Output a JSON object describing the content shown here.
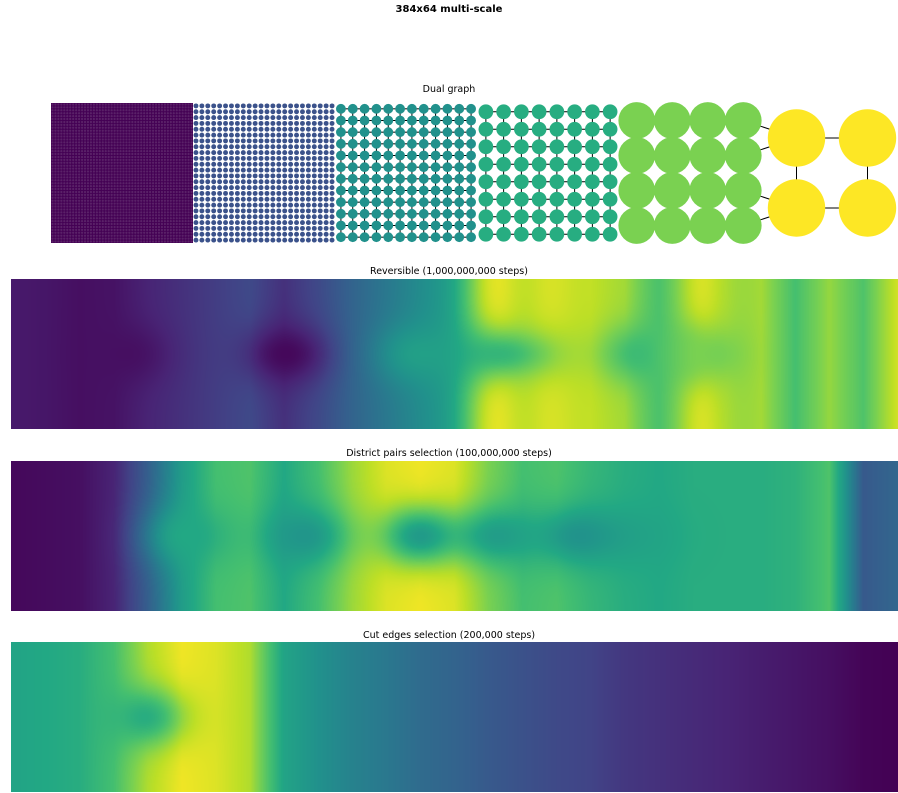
{
  "suptitle": "384x64 multi-scale",
  "chart_data": [
    {
      "type": "graph",
      "title": "Dual graph",
      "levels": [
        {
          "cols": 48,
          "rows": 48,
          "color": "#440154"
        },
        {
          "cols": 24,
          "rows": 24,
          "color": "#3b528b"
        },
        {
          "cols": 12,
          "rows": 12,
          "color": "#21918c"
        },
        {
          "cols": 8,
          "rows": 8,
          "color": "#27ad81"
        },
        {
          "cols": 4,
          "rows": 4,
          "color": "#7ad151"
        },
        {
          "cols": 2,
          "rows": 2,
          "color": "#fde725"
        }
      ],
      "edge_color": "#000000"
    },
    {
      "type": "heatmap",
      "title": "Reversible (1,000,000,000 steps)",
      "colormap": "viridis",
      "grid": false,
      "value_range": [
        0,
        1
      ],
      "profile": [
        0.07,
        0.06,
        0.04,
        0.05,
        0.1,
        0.14,
        0.18,
        0.22,
        0.14,
        0.22,
        0.32,
        0.4,
        0.48,
        0.55,
        0.7,
        0.8,
        0.86,
        0.9,
        0.86,
        0.68,
        0.66,
        0.8,
        0.86,
        0.7,
        0.84,
        0.72,
        0.93
      ],
      "center_dips": [
        [
          0.13,
          0.04
        ],
        [
          0.31,
          0.02
        ],
        [
          0.46,
          0.56
        ],
        [
          0.55,
          0.66
        ],
        [
          0.71,
          0.68
        ],
        [
          0.78,
          0.8
        ]
      ],
      "edge_highlights": [
        [
          0.55,
          0.96
        ],
        [
          0.61,
          0.94
        ],
        [
          0.78,
          0.94
        ]
      ]
    },
    {
      "type": "heatmap",
      "title": "District pairs selection (100,000,000 steps)",
      "colormap": "viridis",
      "grid": false,
      "value_range": [
        0,
        1
      ],
      "profile": [
        0.02,
        0.03,
        0.04,
        0.1,
        0.3,
        0.55,
        0.7,
        0.72,
        0.6,
        0.7,
        0.85,
        0.95,
        0.98,
        0.95,
        0.8,
        0.7,
        0.72,
        0.66,
        0.62,
        0.6,
        0.62,
        0.62,
        0.62,
        0.64,
        0.72,
        0.28,
        0.33
      ],
      "center_dips": [
        [
          0.2,
          0.6
        ],
        [
          0.33,
          0.52
        ],
        [
          0.46,
          0.55
        ],
        [
          0.55,
          0.56
        ],
        [
          0.64,
          0.52
        ],
        [
          0.71,
          0.58
        ]
      ]
    },
    {
      "type": "heatmap",
      "title": "Cut edges selection (200,000 steps)",
      "colormap": "viridis",
      "grid": false,
      "value_range": [
        0,
        1
      ],
      "profile": [
        0.58,
        0.6,
        0.62,
        0.7,
        0.88,
        0.98,
        0.95,
        0.88,
        0.58,
        0.5,
        0.44,
        0.4,
        0.35,
        0.32,
        0.28,
        0.25,
        0.22,
        0.2,
        0.16,
        0.14,
        0.12,
        0.1,
        0.08,
        0.06,
        0.04,
        0.01,
        0.0
      ],
      "center_dips": [
        [
          0.15,
          0.62
        ]
      ]
    }
  ]
}
